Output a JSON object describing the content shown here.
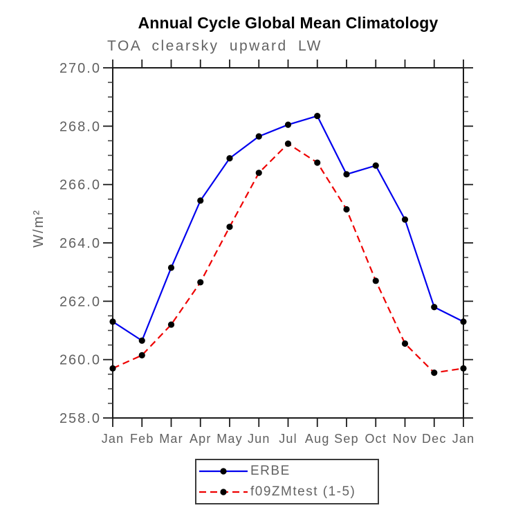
{
  "chart_data": {
    "type": "line",
    "title": "Annual Cycle Global Mean Climatology",
    "subtitle": "TOA clearsky upward LW",
    "ylabel": "W/m²",
    "xlabel": "",
    "ylim": [
      258.0,
      270.0
    ],
    "ytick_major": [
      258.0,
      260.0,
      262.0,
      264.0,
      266.0,
      268.0,
      270.0
    ],
    "ytick_minor_step": 0.5,
    "grid": false,
    "legend_position": "bottom-center",
    "categories": [
      "Jan",
      "Feb",
      "Mar",
      "Apr",
      "May",
      "Jun",
      "Jul",
      "Aug",
      "Sep",
      "Oct",
      "Nov",
      "Dec",
      "Jan"
    ],
    "series": [
      {
        "name": "ERBE",
        "line_color": "#0000ee",
        "line_style": "solid",
        "marker": "circle",
        "marker_color": "#000000",
        "values": [
          261.3,
          260.65,
          263.15,
          265.45,
          266.9,
          267.65,
          268.05,
          268.35,
          266.35,
          266.65,
          264.8,
          261.8,
          261.3
        ]
      },
      {
        "name": "f09ZMtest (1-5)",
        "line_color": "#ee0000",
        "line_style": "dashed",
        "marker": "circle",
        "marker_color": "#000000",
        "values": [
          259.7,
          260.15,
          261.2,
          262.65,
          264.55,
          266.4,
          267.4,
          266.75,
          265.15,
          262.7,
          260.55,
          259.55,
          259.7
        ]
      }
    ]
  }
}
